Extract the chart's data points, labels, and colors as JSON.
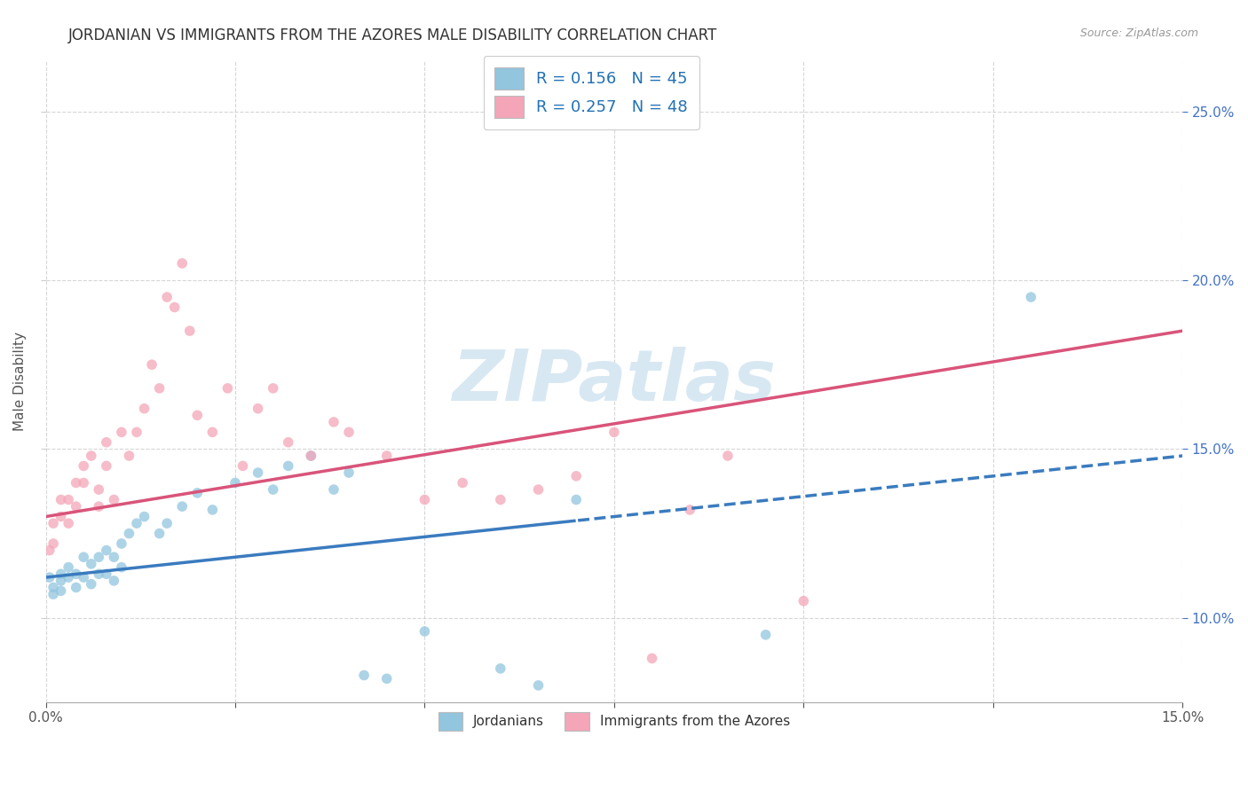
{
  "title": "JORDANIAN VS IMMIGRANTS FROM THE AZORES MALE DISABILITY CORRELATION CHART",
  "source": "Source: ZipAtlas.com",
  "ylabel": "Male Disability",
  "legend_label1": "Jordanians",
  "legend_label2": "Immigrants from the Azores",
  "R1": 0.156,
  "N1": 45,
  "R2": 0.257,
  "N2": 48,
  "color_blue": "#92c5de",
  "color_pink": "#f4a6b8",
  "color_blue_line": "#3a7bbf",
  "color_pink_line": "#d9547a",
  "watermark_color": "#d8e8f3",
  "xlim": [
    0.0,
    0.15
  ],
  "ylim": [
    0.075,
    0.265
  ],
  "ytick_values": [
    0.1,
    0.15,
    0.2,
    0.25
  ],
  "blue_scatter_x": [
    0.0005,
    0.001,
    0.001,
    0.002,
    0.002,
    0.002,
    0.003,
    0.003,
    0.004,
    0.004,
    0.005,
    0.005,
    0.006,
    0.006,
    0.007,
    0.007,
    0.008,
    0.008,
    0.009,
    0.009,
    0.01,
    0.01,
    0.011,
    0.012,
    0.013,
    0.015,
    0.016,
    0.018,
    0.02,
    0.022,
    0.025,
    0.028,
    0.03,
    0.032,
    0.035,
    0.038,
    0.04,
    0.042,
    0.045,
    0.05,
    0.06,
    0.065,
    0.07,
    0.095,
    0.13
  ],
  "blue_scatter_y": [
    0.112,
    0.109,
    0.107,
    0.113,
    0.111,
    0.108,
    0.115,
    0.112,
    0.113,
    0.109,
    0.118,
    0.112,
    0.116,
    0.11,
    0.118,
    0.113,
    0.12,
    0.113,
    0.118,
    0.111,
    0.122,
    0.115,
    0.125,
    0.128,
    0.13,
    0.125,
    0.128,
    0.133,
    0.137,
    0.132,
    0.14,
    0.143,
    0.138,
    0.145,
    0.148,
    0.138,
    0.143,
    0.083,
    0.082,
    0.096,
    0.085,
    0.08,
    0.135,
    0.095,
    0.195
  ],
  "pink_scatter_x": [
    0.0005,
    0.001,
    0.001,
    0.002,
    0.002,
    0.003,
    0.003,
    0.004,
    0.004,
    0.005,
    0.005,
    0.006,
    0.007,
    0.007,
    0.008,
    0.008,
    0.009,
    0.01,
    0.011,
    0.012,
    0.013,
    0.014,
    0.015,
    0.016,
    0.017,
    0.018,
    0.019,
    0.02,
    0.022,
    0.024,
    0.026,
    0.028,
    0.03,
    0.032,
    0.035,
    0.038,
    0.04,
    0.045,
    0.05,
    0.055,
    0.06,
    0.065,
    0.07,
    0.075,
    0.08,
    0.085,
    0.09,
    0.1
  ],
  "pink_scatter_y": [
    0.12,
    0.128,
    0.122,
    0.135,
    0.13,
    0.128,
    0.135,
    0.14,
    0.133,
    0.145,
    0.14,
    0.148,
    0.138,
    0.133,
    0.152,
    0.145,
    0.135,
    0.155,
    0.148,
    0.155,
    0.162,
    0.175,
    0.168,
    0.195,
    0.192,
    0.205,
    0.185,
    0.16,
    0.155,
    0.168,
    0.145,
    0.162,
    0.168,
    0.152,
    0.148,
    0.158,
    0.155,
    0.148,
    0.135,
    0.14,
    0.135,
    0.138,
    0.142,
    0.155,
    0.088,
    0.132,
    0.148,
    0.105
  ],
  "blue_trend_start_x": 0.0,
  "blue_trend_solid_end_x": 0.07,
  "blue_trend_end_x": 0.15,
  "pink_trend_start_x": 0.0,
  "pink_trend_end_x": 0.15
}
